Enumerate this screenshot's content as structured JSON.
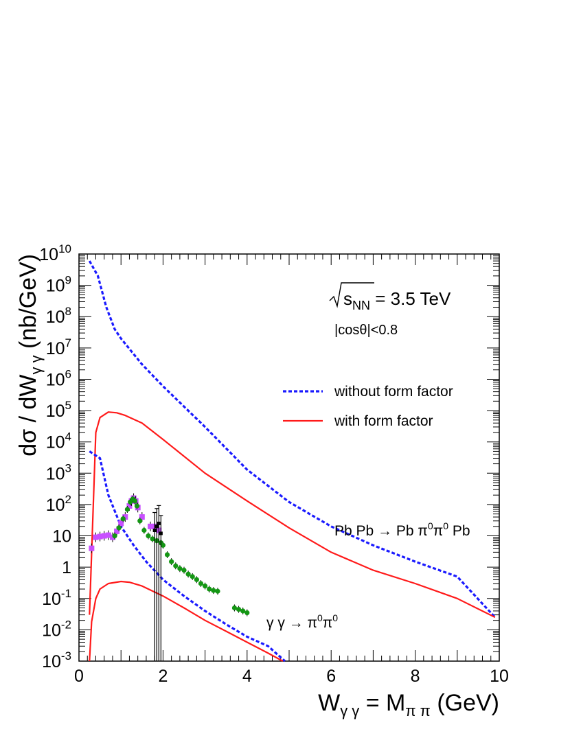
{
  "chart_data": {
    "type": "line",
    "xlabel": {
      "main": "W",
      "sub1": "γ γ",
      "mid": " = M",
      "sub2": "π π",
      "tail": " (GeV)"
    },
    "ylabel": {
      "main": "dσ / dW",
      "sub": "γ γ",
      "tail": " (nb/GeV)"
    },
    "xlim": [
      0,
      10
    ],
    "ylim": [
      0.001,
      10000000000
    ],
    "yscale": "log",
    "x_ticks": [
      "0",
      "2",
      "4",
      "6",
      "8",
      "10"
    ],
    "y_ticks": [
      {
        "base": "10",
        "exp": "-3"
      },
      {
        "base": "10",
        "exp": "-2"
      },
      {
        "base": "10",
        "exp": "-1"
      },
      {
        "base": "1",
        "exp": ""
      },
      {
        "base": "10",
        "exp": ""
      },
      {
        "base": "10",
        "exp": "2"
      },
      {
        "base": "10",
        "exp": "3"
      },
      {
        "base": "10",
        "exp": "4"
      },
      {
        "base": "10",
        "exp": "5"
      },
      {
        "base": "10",
        "exp": "6"
      },
      {
        "base": "10",
        "exp": "7"
      },
      {
        "base": "10",
        "exp": "8"
      },
      {
        "base": "10",
        "exp": "9"
      },
      {
        "base": "10",
        "exp": "10"
      }
    ],
    "annotations": {
      "energy": {
        "s": "s",
        "sub": "NN",
        "value": " = 3.5 TeV"
      },
      "cut": "|cosθ|<0.8",
      "process_nuclear": {
        "pre": "Pb Pb → Pb π",
        "sup1": "0",
        "mid": "π",
        "sup2": "0",
        "post": " Pb"
      },
      "process_gg": {
        "pre": "γ γ → π",
        "sup1": "0",
        "mid": "π",
        "sup2": "0"
      }
    },
    "legend": {
      "position": "middle-right",
      "entries": [
        {
          "label": "without form factor",
          "color": "#1a1aff",
          "style": "dashed"
        },
        {
          "label": "with form factor",
          "color": "#ff1a1a",
          "style": "solid"
        }
      ]
    },
    "series": [
      {
        "name": "without form factor",
        "color": "#1a1aff",
        "style": "dashed",
        "x": [
          0.25,
          0.45,
          0.65,
          0.85,
          1.0,
          1.5,
          2.0,
          3.0,
          4.0,
          5.0,
          6.0,
          7.0,
          8.0,
          9.0,
          9.9
        ],
        "y": [
          6000000000,
          2000000000,
          200000000,
          40000000,
          20000000,
          3000000,
          600000,
          30000,
          1300,
          120,
          20,
          5,
          1.5,
          0.5,
          0.025
        ]
      },
      {
        "name": "with form factor",
        "color": "#ff1a1a",
        "style": "solid",
        "x": [
          0.25,
          0.4,
          0.5,
          0.7,
          0.9,
          1.1,
          1.5,
          2.0,
          3.0,
          4.0,
          5.0,
          6.0,
          7.0,
          8.0,
          9.0,
          9.9
        ],
        "y": [
          0.03,
          20000,
          60000,
          90000,
          85000,
          70000,
          40000,
          12000,
          1000,
          130,
          18,
          3,
          0.8,
          0.3,
          0.1,
          0.025
        ]
      },
      {
        "name": "without form factor",
        "color": "#1a1aff",
        "style": "dashed",
        "x": [
          0.25,
          0.5,
          0.7,
          1.0,
          1.3,
          1.6,
          2.0,
          2.5,
          3.0,
          3.5,
          4.0,
          4.5,
          4.9
        ],
        "y": [
          5000,
          3000,
          200,
          20,
          5,
          1.5,
          0.4,
          0.12,
          0.04,
          0.015,
          0.006,
          0.003,
          0.001
        ]
      },
      {
        "name": "with form factor",
        "color": "#ff1a1a",
        "style": "solid",
        "x": [
          0.25,
          0.3,
          0.4,
          0.5,
          0.7,
          1.0,
          1.2,
          1.5,
          2.0,
          2.5,
          3.0,
          3.5,
          4.0,
          4.5,
          4.85
        ],
        "y": [
          0.001,
          0.018,
          0.1,
          0.2,
          0.3,
          0.35,
          0.33,
          0.25,
          0.12,
          0.05,
          0.02,
          0.009,
          0.004,
          0.0018,
          0.001
        ]
      }
    ],
    "data_points": [
      {
        "name": "magenta",
        "color": "#c850ff",
        "x": [
          0.3,
          0.4,
          0.5,
          0.6,
          0.7,
          0.8,
          0.9,
          1.0,
          1.1,
          1.2,
          1.25,
          1.3,
          1.35,
          1.4,
          1.5,
          1.7,
          1.8,
          1.9
        ],
        "y": [
          4,
          9,
          9.5,
          10,
          10.5,
          9,
          14,
          25,
          40,
          90,
          130,
          160,
          130,
          80,
          40,
          20,
          20,
          15
        ]
      },
      {
        "name": "green",
        "color": "#149614",
        "x": [
          0.85,
          0.95,
          1.05,
          1.15,
          1.22,
          1.28,
          1.33,
          1.38,
          1.45,
          1.55,
          1.65,
          1.75,
          1.85,
          1.95,
          2.0,
          2.1,
          2.2,
          2.3,
          2.4,
          2.5,
          2.6,
          2.7,
          2.8,
          2.9,
          3.0,
          3.1,
          3.2,
          3.3,
          3.7,
          3.8,
          3.9,
          4.0
        ],
        "y": [
          10,
          18,
          35,
          70,
          120,
          150,
          130,
          90,
          30,
          15,
          10,
          8,
          7,
          6,
          5,
          2.5,
          1.5,
          1.1,
          0.9,
          0.8,
          0.6,
          0.5,
          0.4,
          0.3,
          0.25,
          0.2,
          0.18,
          0.17,
          0.05,
          0.045,
          0.04,
          0.035
        ]
      },
      {
        "name": "black",
        "color": "#000000",
        "x": [
          1.8,
          1.85,
          1.9,
          1.95
        ],
        "y": [
          15,
          20,
          25,
          12
        ]
      }
    ]
  }
}
